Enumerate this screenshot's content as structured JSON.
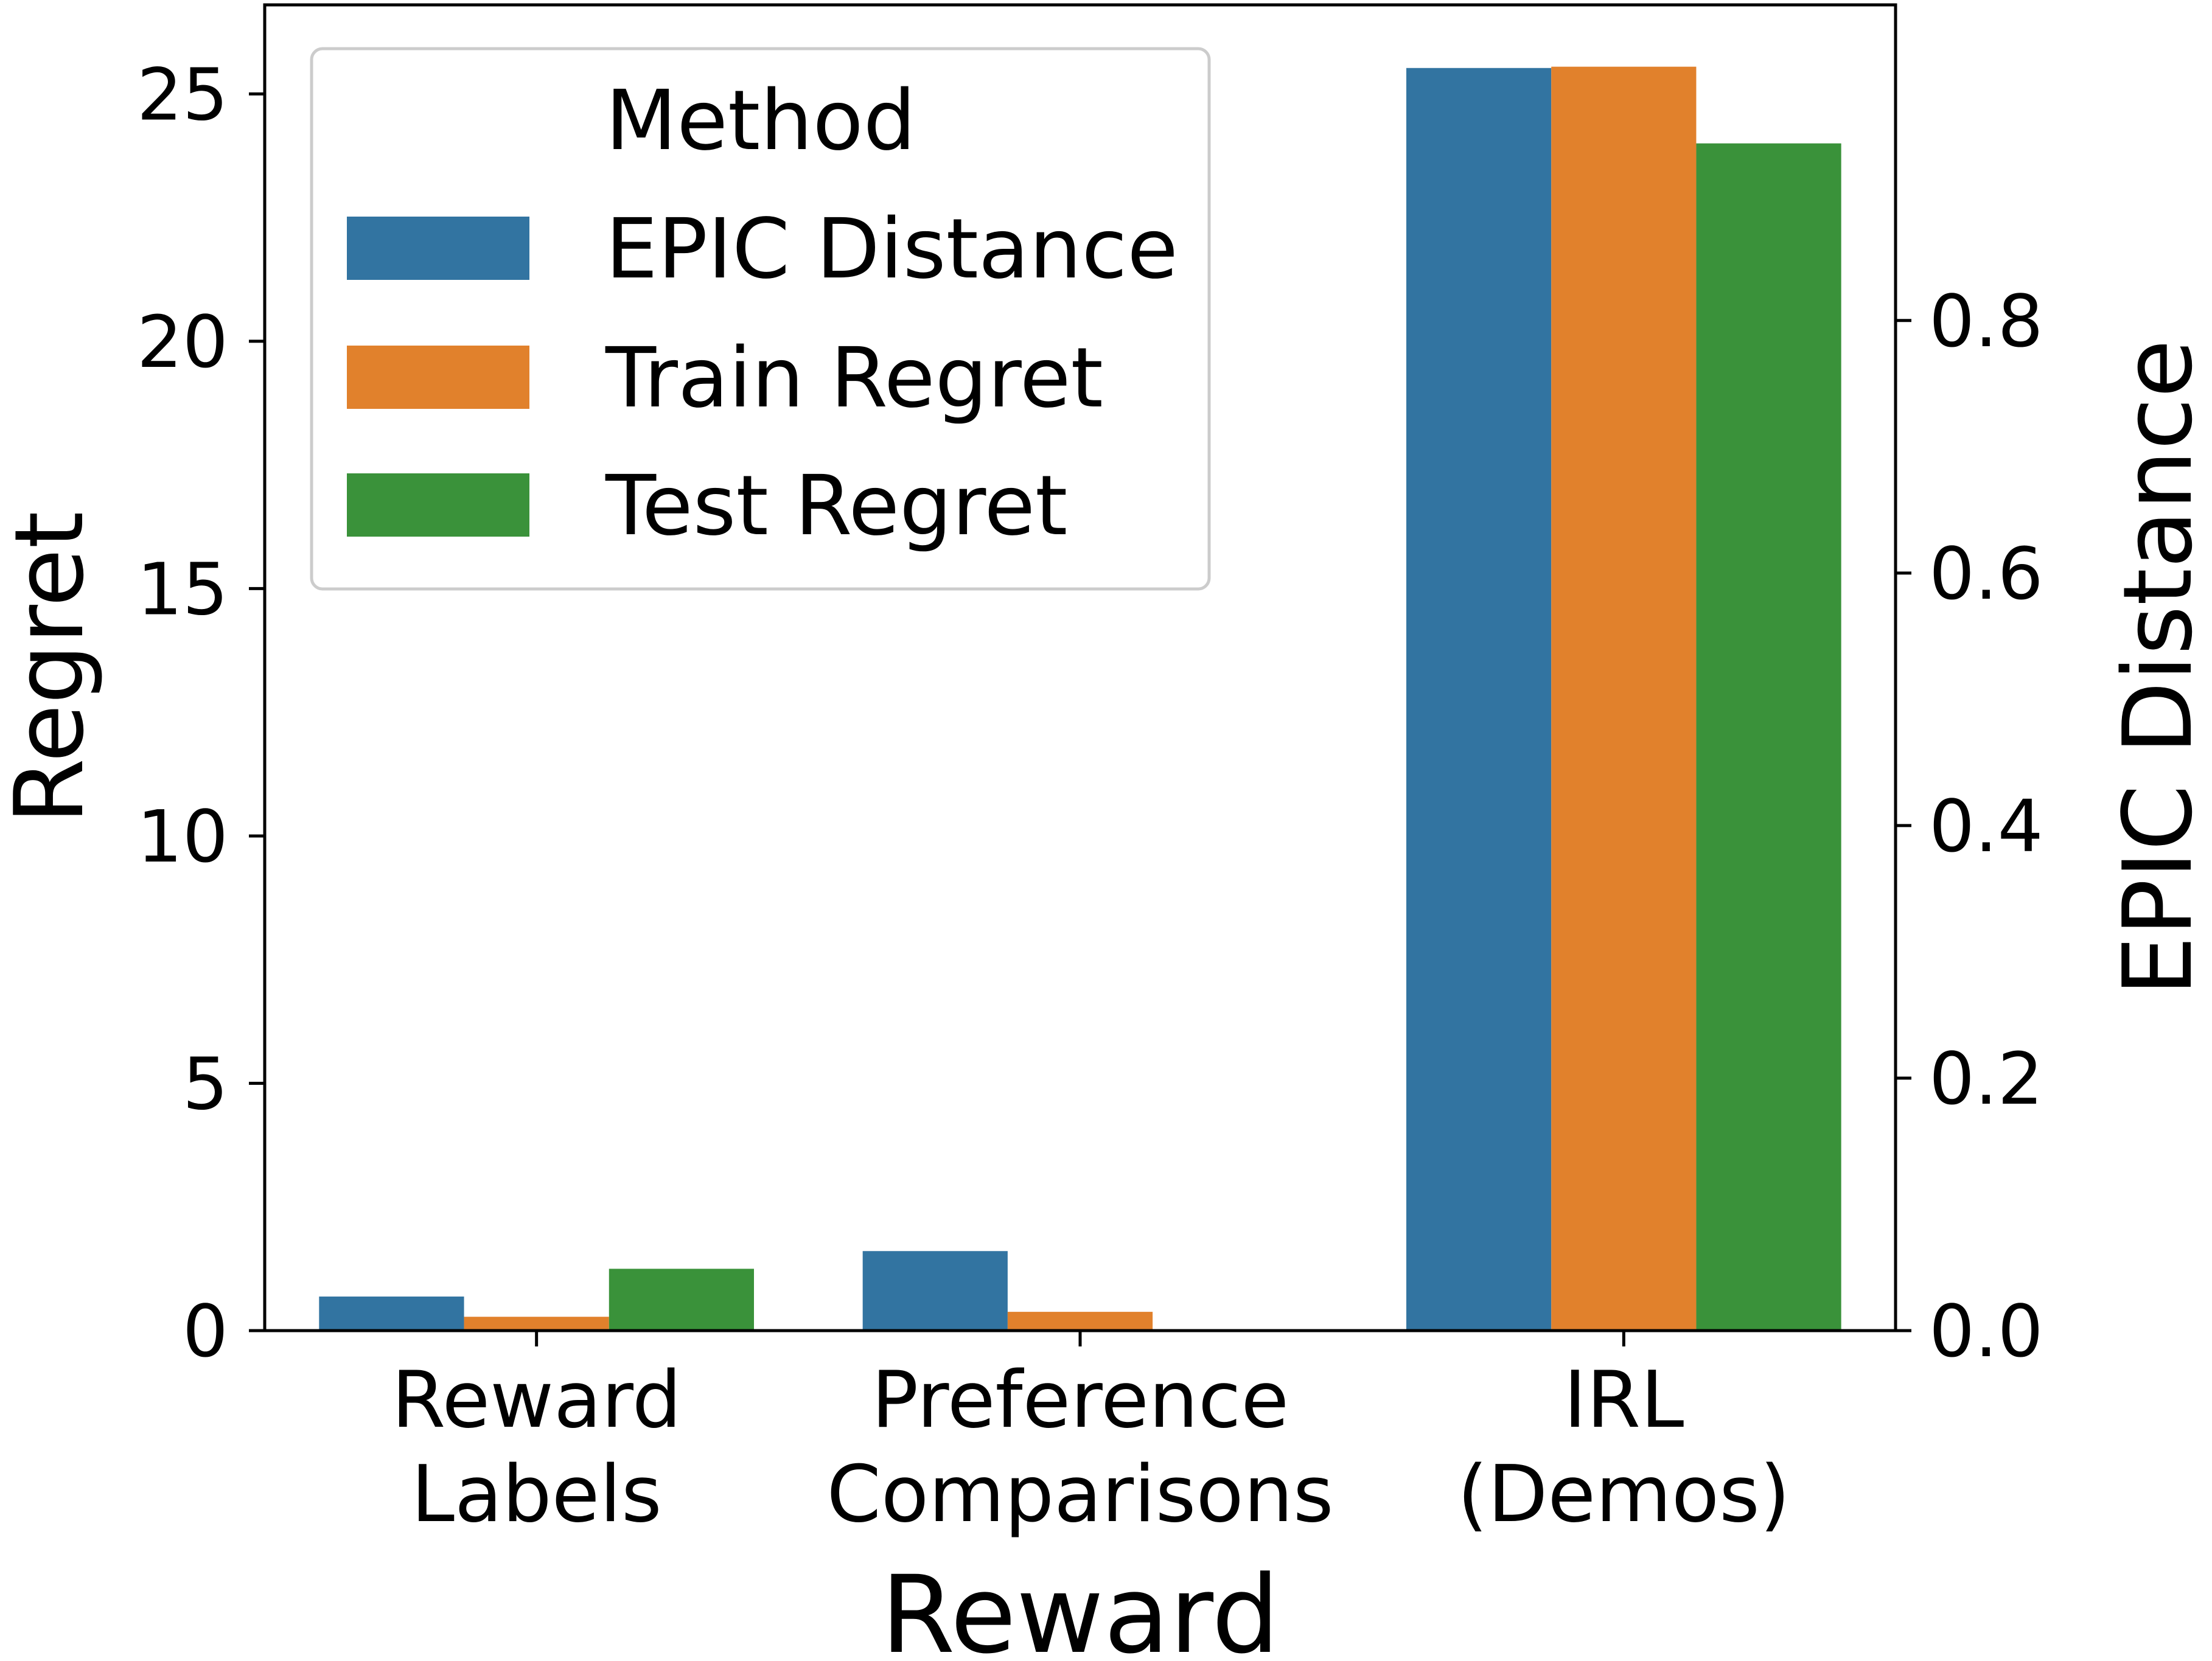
{
  "chart_data": {
    "type": "bar",
    "categories": [
      [
        "Reward",
        "Labels"
      ],
      [
        "Preference",
        "Comparisons"
      ],
      [
        "IRL",
        "(Demos)"
      ]
    ],
    "series": [
      {
        "name": "EPIC Distance",
        "axis": "right",
        "color": "#3274a1",
        "values": [
          0.027,
          0.063,
          1.0
        ]
      },
      {
        "name": "Train Regret",
        "axis": "left",
        "color": "#e1812c",
        "values": [
          0.28,
          0.38,
          25.55
        ]
      },
      {
        "name": "Test Regret",
        "axis": "left",
        "color": "#3a923a",
        "values": [
          1.25,
          0.0,
          24.0
        ]
      }
    ],
    "xlabel": "Reward",
    "ylabel": "Regret",
    "y2label": "EPIC Distance",
    "ylim": [
      0,
      26.8
    ],
    "y2lim": [
      0,
      1.05
    ],
    "yticks": [
      0,
      5,
      10,
      15,
      20,
      25
    ],
    "y2ticks": [
      0.0,
      0.2,
      0.4,
      0.6,
      0.8
    ],
    "ytick_labels": [
      "0",
      "5",
      "10",
      "15",
      "20",
      "25"
    ],
    "y2tick_labels": [
      "0.0",
      "0.2",
      "0.4",
      "0.6",
      "0.8"
    ],
    "legend": {
      "title": "Method",
      "placement": "top-left"
    },
    "grid": false
  }
}
